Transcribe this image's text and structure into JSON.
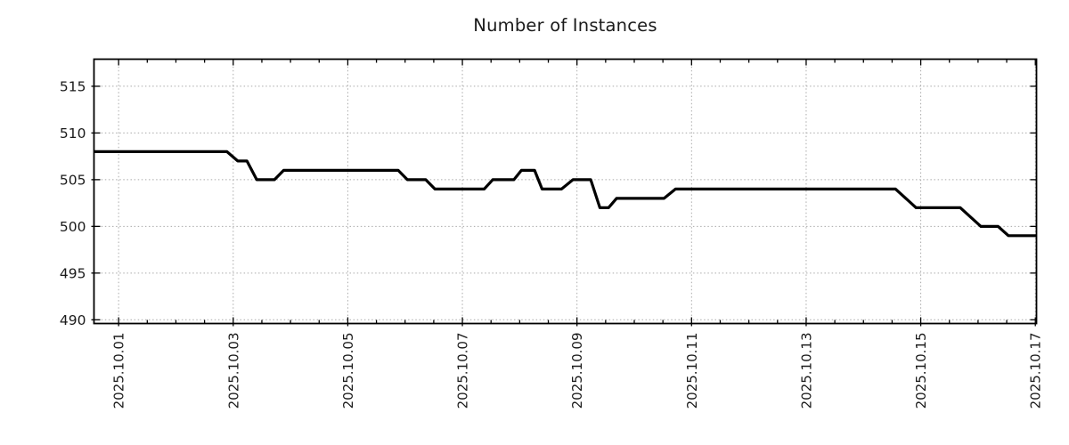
{
  "page": {
    "background": "#ffffff"
  },
  "chart_data": {
    "type": "line",
    "title": "Number of Instances",
    "xlabel": "",
    "ylabel": "",
    "legend": "none",
    "grid": "dotted",
    "x_unit": "days since 2025-10-01 00:00",
    "xlim": [
      -0.43,
      16.02
    ],
    "ylim": [
      489.6,
      517.9
    ],
    "y_ticks": [
      490,
      495,
      500,
      505,
      510,
      515
    ],
    "x_ticks": [
      {
        "t": 0,
        "label": "2025.10.01"
      },
      {
        "t": 2,
        "label": "2025.10.03"
      },
      {
        "t": 4,
        "label": "2025.10.05"
      },
      {
        "t": 6,
        "label": "2025.10.07"
      },
      {
        "t": 8,
        "label": "2025.10.09"
      },
      {
        "t": 10,
        "label": "2025.10.11"
      },
      {
        "t": 12,
        "label": "2025.10.13"
      },
      {
        "t": 14,
        "label": "2025.10.15"
      },
      {
        "t": 16,
        "label": "2025.10.17"
      }
    ],
    "x_minor_step": 0.5,
    "series": [
      {
        "name": "instances",
        "color": "#000000",
        "points": [
          [
            -0.43,
            508
          ],
          [
            1.89,
            508
          ],
          [
            2.08,
            507
          ],
          [
            2.24,
            507
          ],
          [
            2.41,
            505
          ],
          [
            2.72,
            505
          ],
          [
            2.88,
            506
          ],
          [
            4.88,
            506
          ],
          [
            5.04,
            505
          ],
          [
            5.36,
            505
          ],
          [
            5.52,
            504
          ],
          [
            6.38,
            504
          ],
          [
            6.53,
            505
          ],
          [
            6.9,
            505
          ],
          [
            7.03,
            506
          ],
          [
            7.26,
            506
          ],
          [
            7.39,
            504
          ],
          [
            7.73,
            504
          ],
          [
            7.93,
            505
          ],
          [
            8.24,
            505
          ],
          [
            8.4,
            502
          ],
          [
            8.55,
            502
          ],
          [
            8.69,
            503
          ],
          [
            9.52,
            503
          ],
          [
            9.72,
            504
          ],
          [
            13.56,
            504
          ],
          [
            13.92,
            502
          ],
          [
            14.69,
            502
          ],
          [
            15.05,
            500
          ],
          [
            15.35,
            500
          ],
          [
            15.53,
            499
          ],
          [
            16.02,
            499
          ]
        ]
      }
    ],
    "colors": {
      "line": "#000000",
      "grid": "#aaaaaa",
      "spine": "#000000",
      "text": "#1a1a1a"
    }
  }
}
